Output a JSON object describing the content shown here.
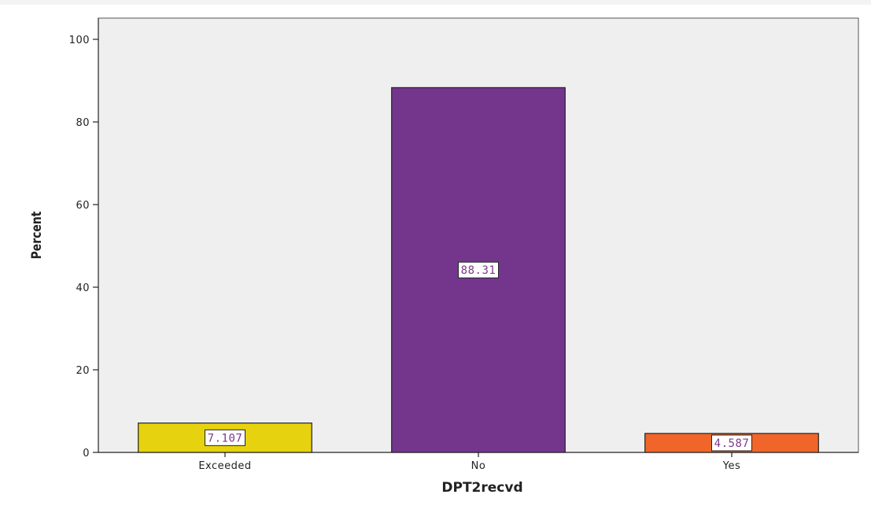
{
  "chart_data": {
    "type": "bar",
    "title": "",
    "xlabel": "DPT2recvd",
    "ylabel": "Percent",
    "ylim": [
      0,
      100
    ],
    "yticks": [
      0,
      20,
      40,
      60,
      80,
      100
    ],
    "categories": [
      "Exceeded",
      "No",
      "Yes"
    ],
    "values": [
      7.107,
      88.31,
      4.587
    ],
    "data_labels": [
      "7.107",
      "88.31",
      "4.587"
    ],
    "colors": [
      "#e6d20e",
      "#74368c",
      "#f0662a"
    ],
    "grid": false,
    "legend": "none"
  },
  "style": {
    "plot_background": "#efefef",
    "bar_stroke": "#222222",
    "data_label_color": "#7a3a8c"
  }
}
